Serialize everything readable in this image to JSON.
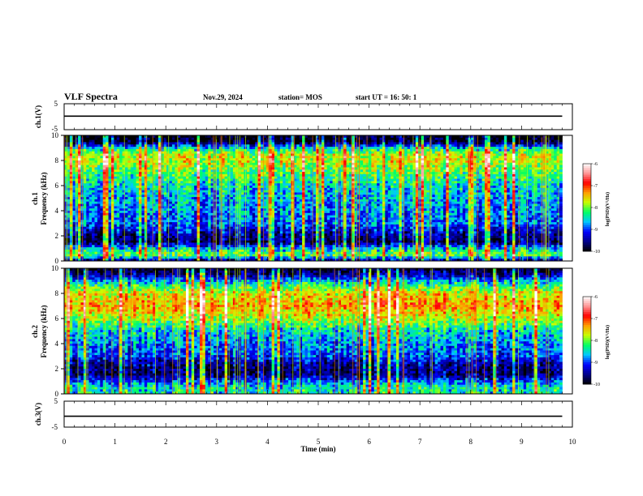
{
  "header": {
    "title": "VLF Spectra",
    "date": "Nov.29, 2024",
    "station": "station= MOS",
    "start": "start  UT  =   16: 50: 1"
  },
  "colors": {
    "spectro_ramp": [
      "#000000",
      "#00008c",
      "#0000ff",
      "#00c8ff",
      "#00ff64",
      "#c8ff00",
      "#ffa000",
      "#ff0000",
      "#ff9696",
      "#ffffff"
    ],
    "frame": "#000000",
    "background": "#ffffff"
  },
  "chart_data": [
    {
      "type": "line",
      "id": "ch1-waveform",
      "ylabel": "ch.1(V)",
      "ylim": [
        -5,
        5
      ],
      "yticks": [
        "5",
        "-5"
      ],
      "xlim": [
        0,
        10
      ],
      "series": [
        {
          "x": [
            0,
            9.8
          ],
          "y": [
            0.2,
            0.2
          ]
        }
      ]
    },
    {
      "type": "heatmap",
      "id": "ch1-spectrogram",
      "ylabel_top": "ch.1",
      "ylabel": "Frequency (kHz)",
      "ylim": [
        0,
        10
      ],
      "yticks": [
        "0",
        "2",
        "4",
        "6",
        "8",
        "10"
      ],
      "xlim": [
        0,
        10
      ],
      "data_end_min": 9.8,
      "colorbar": {
        "label": "log(PSD)(V²/Hz)",
        "ticks": [
          "-6",
          "-7",
          "-8",
          "-9",
          "-10"
        ],
        "range": [
          -10,
          -6
        ]
      },
      "profile_freq_khz": [
        0,
        0.5,
        1,
        1.5,
        2,
        2.5,
        3,
        4,
        5,
        6,
        7,
        8,
        8.5,
        9,
        9.5,
        10
      ],
      "profile_log_psd": [
        -9.6,
        -8.0,
        -8.6,
        -9.7,
        -9.5,
        -9.2,
        -8.9,
        -8.8,
        -8.7,
        -8.5,
        -8.1,
        -7.7,
        -7.8,
        -8.6,
        -9.9,
        -10
      ]
    },
    {
      "type": "heatmap",
      "id": "ch2-spectrogram",
      "ylabel_top": "ch.2",
      "ylabel": "Frequency (kHz)",
      "ylim": [
        0,
        10
      ],
      "yticks": [
        "0",
        "2",
        "4",
        "6",
        "8",
        "10"
      ],
      "xlim": [
        0,
        10
      ],
      "data_end_min": 9.8,
      "colorbar": {
        "label": "log(PSD)(V²/Hz)",
        "ticks": [
          "-6",
          "-7",
          "-8",
          "-9",
          "-10"
        ],
        "range": [
          -10,
          -6
        ]
      },
      "profile_freq_khz": [
        0,
        0.5,
        1,
        1.5,
        2,
        2.5,
        3,
        4,
        5,
        6,
        7,
        8,
        8.5,
        9,
        9.5,
        10
      ],
      "profile_log_psd": [
        -8.4,
        -8.4,
        -8.9,
        -9.6,
        -9.6,
        -9.4,
        -9.0,
        -8.8,
        -8.5,
        -7.8,
        -7.3,
        -7.6,
        -8.1,
        -8.7,
        -9.5,
        -9.9
      ]
    },
    {
      "type": "line",
      "id": "ch3-waveform",
      "ylabel": "ch.3(V)",
      "ylim": [
        -5,
        5
      ],
      "yticks": [
        "5",
        "-5"
      ],
      "xlim": [
        0,
        10
      ],
      "xlabel": "Time (min)",
      "xticks": [
        "0",
        "1",
        "2",
        "3",
        "4",
        "5",
        "6",
        "7",
        "8",
        "9",
        "10"
      ],
      "series": [
        {
          "x": [
            0,
            9.8
          ],
          "y": [
            -0.8,
            -0.8
          ]
        }
      ]
    }
  ]
}
